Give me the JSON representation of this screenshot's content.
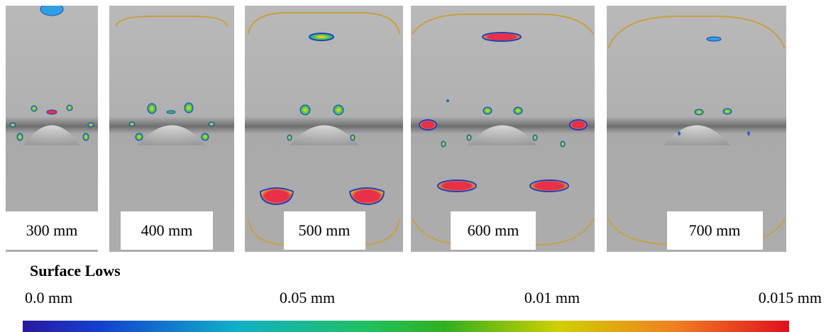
{
  "panels": [
    {
      "label": "300 mm"
    },
    {
      "label": "400 mm"
    },
    {
      "label": "500 mm"
    },
    {
      "label": "600 mm"
    },
    {
      "label": "700 mm"
    }
  ],
  "legend": {
    "title": "Surface Lows",
    "labels": [
      "0.0 mm",
      "0.05 mm",
      "0.01 mm",
      "0.015 mm"
    ]
  }
}
